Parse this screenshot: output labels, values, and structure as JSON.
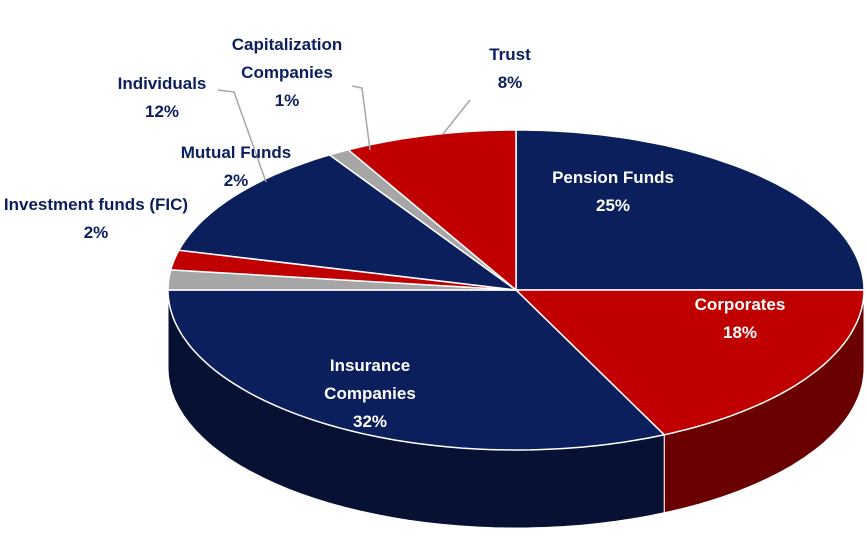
{
  "chart_data": {
    "type": "pie",
    "categories": [
      "Pension Funds",
      "Corporates",
      "Insurance Companies",
      "Investment funds (FIC)",
      "Mutual Funds",
      "Individuals",
      "Capitalization Companies",
      "Trust"
    ],
    "values": [
      25,
      18,
      32,
      2,
      2,
      12,
      1,
      8
    ],
    "value_labels": [
      "25%",
      "18%",
      "32%",
      "2%",
      "2%",
      "12%",
      "1%",
      "8%"
    ],
    "colors": [
      "#0b1f5c",
      "#c00000",
      "#0b1f5c",
      "#a6a6a6",
      "#c00000",
      "#0b1f5c",
      "#a6a6a6",
      "#c00000"
    ]
  }
}
